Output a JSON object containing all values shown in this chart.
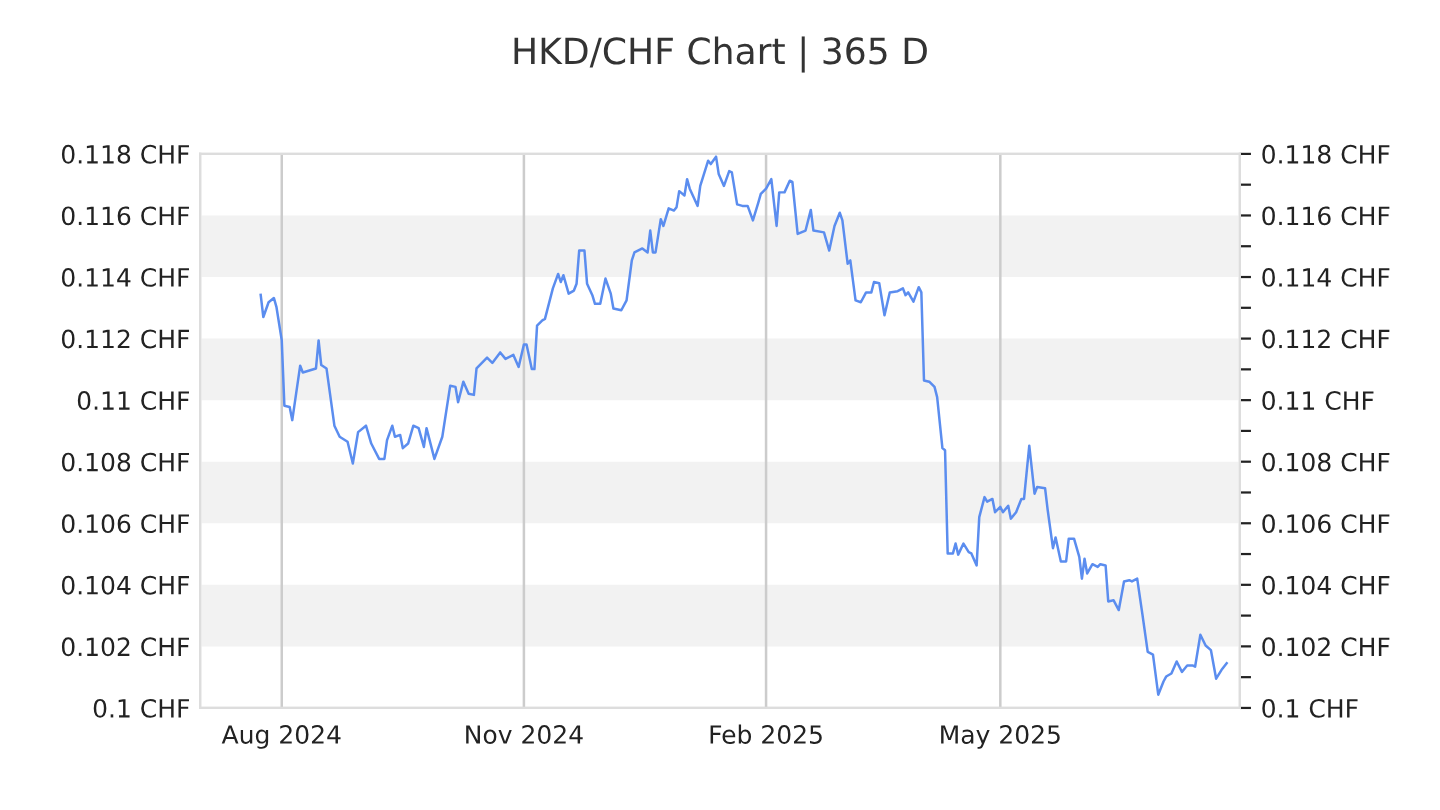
{
  "chart_data": {
    "type": "line",
    "title": "HKD/CHF Chart | 365 D",
    "x": [
      "2024-07-24",
      "2024-07-25",
      "2024-07-27",
      "2024-07-29",
      "2024-07-30",
      "2024-08-01",
      "2024-08-02",
      "2024-08-04",
      "2024-08-05",
      "2024-08-08",
      "2024-08-09",
      "2024-08-14",
      "2024-08-15",
      "2024-08-16",
      "2024-08-18",
      "2024-08-21",
      "2024-08-23",
      "2024-08-26",
      "2024-08-28",
      "2024-08-30",
      "2024-09-02",
      "2024-09-04",
      "2024-09-07",
      "2024-09-09",
      "2024-09-10",
      "2024-09-12",
      "2024-09-13",
      "2024-09-15",
      "2024-09-16",
      "2024-09-18",
      "2024-09-20",
      "2024-09-22",
      "2024-09-24",
      "2024-09-25",
      "2024-09-28",
      "2024-10-01",
      "2024-10-04",
      "2024-10-06",
      "2024-10-07",
      "2024-10-09",
      "2024-10-11",
      "2024-10-13",
      "2024-10-14",
      "2024-10-18",
      "2024-10-20",
      "2024-10-23",
      "2024-10-25",
      "2024-10-28",
      "2024-10-30",
      "2024-11-01",
      "2024-11-02",
      "2024-11-04",
      "2024-11-05",
      "2024-11-06",
      "2024-11-08",
      "2024-11-09",
      "2024-11-12",
      "2024-11-14",
      "2024-11-15",
      "2024-11-16",
      "2024-11-18",
      "2024-11-20",
      "2024-11-21",
      "2024-11-22",
      "2024-11-24",
      "2024-11-25",
      "2024-11-27",
      "2024-11-28",
      "2024-11-30",
      "2024-12-02",
      "2024-12-04",
      "2024-12-05",
      "2024-12-08",
      "2024-12-10",
      "2024-12-12",
      "2024-12-13",
      "2024-12-16",
      "2024-12-18",
      "2024-12-19",
      "2024-12-20",
      "2024-12-21",
      "2024-12-23",
      "2024-12-24",
      "2024-12-26",
      "2024-12-28",
      "2024-12-29",
      "2024-12-30",
      "2025-01-01",
      "2025-01-02",
      "2025-01-03",
      "2025-01-06",
      "2025-01-07",
      "2025-01-10",
      "2025-01-11",
      "2025-01-13",
      "2025-01-14",
      "2025-01-16",
      "2025-01-18",
      "2025-01-19",
      "2025-01-21",
      "2025-01-23",
      "2025-01-25",
      "2025-01-27",
      "2025-01-29",
      "2025-01-30",
      "2025-02-01",
      "2025-02-03",
      "2025-02-05",
      "2025-02-06",
      "2025-02-08",
      "2025-02-10",
      "2025-02-11",
      "2025-02-13",
      "2025-02-16",
      "2025-02-18",
      "2025-02-19",
      "2025-02-23",
      "2025-02-25",
      "2025-02-27",
      "2025-03-01",
      "2025-03-02",
      "2025-03-04",
      "2025-03-05",
      "2025-03-07",
      "2025-03-09",
      "2025-03-11",
      "2025-03-13",
      "2025-03-14",
      "2025-03-16",
      "2025-03-18",
      "2025-03-20",
      "2025-03-23",
      "2025-03-25",
      "2025-03-26",
      "2025-03-27",
      "2025-03-29",
      "2025-03-31",
      "2025-04-01",
      "2025-04-02",
      "2025-04-04",
      "2025-04-06",
      "2025-04-07",
      "2025-04-09",
      "2025-04-10",
      "2025-04-11",
      "2025-04-13",
      "2025-04-14",
      "2025-04-15",
      "2025-04-17",
      "2025-04-19",
      "2025-04-20",
      "2025-04-22",
      "2025-04-23",
      "2025-04-25",
      "2025-04-26",
      "2025-04-28",
      "2025-04-29",
      "2025-05-01",
      "2025-05-02",
      "2025-05-04",
      "2025-05-05",
      "2025-05-07",
      "2025-05-09",
      "2025-05-10",
      "2025-05-12",
      "2025-05-14",
      "2025-05-15",
      "2025-05-18",
      "2025-05-19",
      "2025-05-21",
      "2025-05-22",
      "2025-05-24",
      "2025-05-26",
      "2025-05-27",
      "2025-05-29",
      "2025-05-31",
      "2025-06-01",
      "2025-06-02",
      "2025-06-03",
      "2025-06-05",
      "2025-06-07",
      "2025-06-08",
      "2025-06-10",
      "2025-06-11",
      "2025-06-13",
      "2025-06-15",
      "2025-06-17",
      "2025-06-19",
      "2025-06-20",
      "2025-06-22",
      "2025-06-24",
      "2025-06-26",
      "2025-06-28",
      "2025-06-30",
      "2025-07-02",
      "2025-07-03",
      "2025-07-05",
      "2025-07-07",
      "2025-07-09",
      "2025-07-11",
      "2025-07-13",
      "2025-07-14",
      "2025-07-16",
      "2025-07-18",
      "2025-07-20",
      "2025-07-22",
      "2025-07-24",
      "2025-07-26"
    ],
    "series": [
      {
        "color": "#5b8def",
        "values": [
          0.11342,
          0.1127,
          0.11318,
          0.11332,
          0.11302,
          0.11194,
          0.10982,
          0.10978,
          0.10935,
          0.11112,
          0.1109,
          0.11103,
          0.11194,
          0.11114,
          0.11103,
          0.10917,
          0.10881,
          0.10865,
          0.10794,
          0.10896,
          0.10917,
          0.10859,
          0.10809,
          0.10809,
          0.1087,
          0.10917,
          0.10881,
          0.10887,
          0.10844,
          0.10859,
          0.10917,
          0.10909,
          0.10848,
          0.10909,
          0.10809,
          0.10881,
          0.11047,
          0.11043,
          0.10993,
          0.1106,
          0.11021,
          0.11017,
          0.11103,
          0.11138,
          0.11121,
          0.11155,
          0.11134,
          0.11147,
          0.11108,
          0.11181,
          0.11181,
          0.11101,
          0.11101,
          0.11242,
          0.11259,
          0.11264,
          0.11363,
          0.1141,
          0.11384,
          0.11406,
          0.11346,
          0.11356,
          0.11378,
          0.11486,
          0.11486,
          0.11378,
          0.11341,
          0.11313,
          0.11313,
          0.11395,
          0.11346,
          0.11298,
          0.11292,
          0.11324,
          0.11454,
          0.1148,
          0.11493,
          0.1148,
          0.11551,
          0.1148,
          0.1148,
          0.11588,
          0.11566,
          0.11623,
          0.11616,
          0.11627,
          0.11679,
          0.11665,
          0.11718,
          0.11687,
          0.11631,
          0.11696,
          0.11778,
          0.11767,
          0.11791,
          0.11735,
          0.11696,
          0.11744,
          0.1174,
          0.11636,
          0.11631,
          0.11631,
          0.11584,
          0.1164,
          0.1167,
          0.11687,
          0.11718,
          0.11566,
          0.11675,
          0.11675,
          0.11713,
          0.11709,
          0.1154,
          0.11551,
          0.11618,
          0.11551,
          0.11545,
          0.11486,
          0.11566,
          0.11609,
          0.11584,
          0.11443,
          0.11454,
          0.11324,
          0.11318,
          0.1135,
          0.1135,
          0.11384,
          0.1138,
          0.11276,
          0.1135,
          0.11354,
          0.11363,
          0.11341,
          0.1135,
          0.1132,
          0.11367,
          0.1135,
          0.11064,
          0.1106,
          0.11043,
          0.1101,
          0.10844,
          0.10837,
          0.10502,
          0.10502,
          0.10534,
          0.10498,
          0.10534,
          0.10506,
          0.10502,
          0.10463,
          0.1062,
          0.10685,
          0.1067,
          0.10679,
          0.10636,
          0.10653,
          0.10636,
          0.10657,
          0.10615,
          0.10636,
          0.10679,
          0.10679,
          0.10852,
          0.10696,
          0.10718,
          0.10714,
          0.10643,
          0.10519,
          0.10554,
          0.10476,
          0.10476,
          0.1055,
          0.1055,
          0.10491,
          0.1042,
          0.10485,
          0.10437,
          0.10467,
          0.10458,
          0.10467,
          0.10463,
          0.10346,
          0.1035,
          0.10318,
          0.10411,
          0.10415,
          0.10411,
          0.1042,
          0.10303,
          0.10182,
          0.10173,
          0.10043,
          0.10086,
          0.10102,
          0.10112,
          0.10151,
          0.10117,
          0.10138,
          0.10138,
          0.10134,
          0.10238,
          0.10203,
          0.10188,
          0.10095,
          0.10123,
          0.10145
        ]
      }
    ],
    "xlim": [
      "2024-07-01",
      "2025-07-31"
    ],
    "xticks": [
      {
        "value": "2024-08-01",
        "label": "Aug 2024"
      },
      {
        "value": "2024-11-01",
        "label": "Nov 2024"
      },
      {
        "value": "2025-02-01",
        "label": "Feb 2025"
      },
      {
        "value": "2025-05-01",
        "label": "May 2025"
      }
    ],
    "ylim": [
      0.1,
      0.118
    ],
    "yticks": [
      {
        "value": 0.1,
        "label": "0.1 CHF"
      },
      {
        "value": 0.102,
        "label": "0.102 CHF"
      },
      {
        "value": 0.104,
        "label": "0.104 CHF"
      },
      {
        "value": 0.106,
        "label": "0.106 CHF"
      },
      {
        "value": 0.108,
        "label": "0.108 CHF"
      },
      {
        "value": 0.11,
        "label": "0.11 CHF"
      },
      {
        "value": 0.112,
        "label": "0.112 CHF"
      },
      {
        "value": 0.114,
        "label": "0.114 CHF"
      },
      {
        "value": 0.116,
        "label": "0.116 CHF"
      },
      {
        "value": 0.118,
        "label": "0.118 CHF"
      }
    ],
    "y2lim": [
      0.1,
      0.118
    ],
    "y2ticks": [
      {
        "value": 0.1,
        "label": "0.1 CHF"
      },
      {
        "value": 0.101,
        "label": null
      },
      {
        "value": 0.102,
        "label": "0.102 CHF"
      },
      {
        "value": 0.103,
        "label": null
      },
      {
        "value": 0.104,
        "label": "0.104 CHF"
      },
      {
        "value": 0.105,
        "label": null
      },
      {
        "value": 0.106,
        "label": "0.106 CHF"
      },
      {
        "value": 0.107,
        "label": null
      },
      {
        "value": 0.108,
        "label": "0.108 CHF"
      },
      {
        "value": 0.109,
        "label": null
      },
      {
        "value": 0.11,
        "label": "0.11 CHF"
      },
      {
        "value": 0.111,
        "label": null
      },
      {
        "value": 0.112,
        "label": "0.112 CHF"
      },
      {
        "value": 0.113,
        "label": null
      },
      {
        "value": 0.114,
        "label": "0.114 CHF"
      },
      {
        "value": 0.115,
        "label": null
      },
      {
        "value": 0.116,
        "label": "0.116 CHF"
      },
      {
        "value": 0.117,
        "label": null
      },
      {
        "value": 0.118,
        "label": "0.118 CHF"
      }
    ],
    "bands": [
      {
        "axis": "y",
        "from": 0.102,
        "to": 0.104,
        "color": "#f2f2f2"
      },
      {
        "axis": "y",
        "from": 0.106,
        "to": 0.108,
        "color": "#f2f2f2"
      },
      {
        "axis": "y",
        "from": 0.11,
        "to": 0.112,
        "color": "#f2f2f2"
      },
      {
        "axis": "y",
        "from": 0.114,
        "to": 0.116,
        "color": "#f2f2f2"
      }
    ],
    "grid": "x"
  }
}
